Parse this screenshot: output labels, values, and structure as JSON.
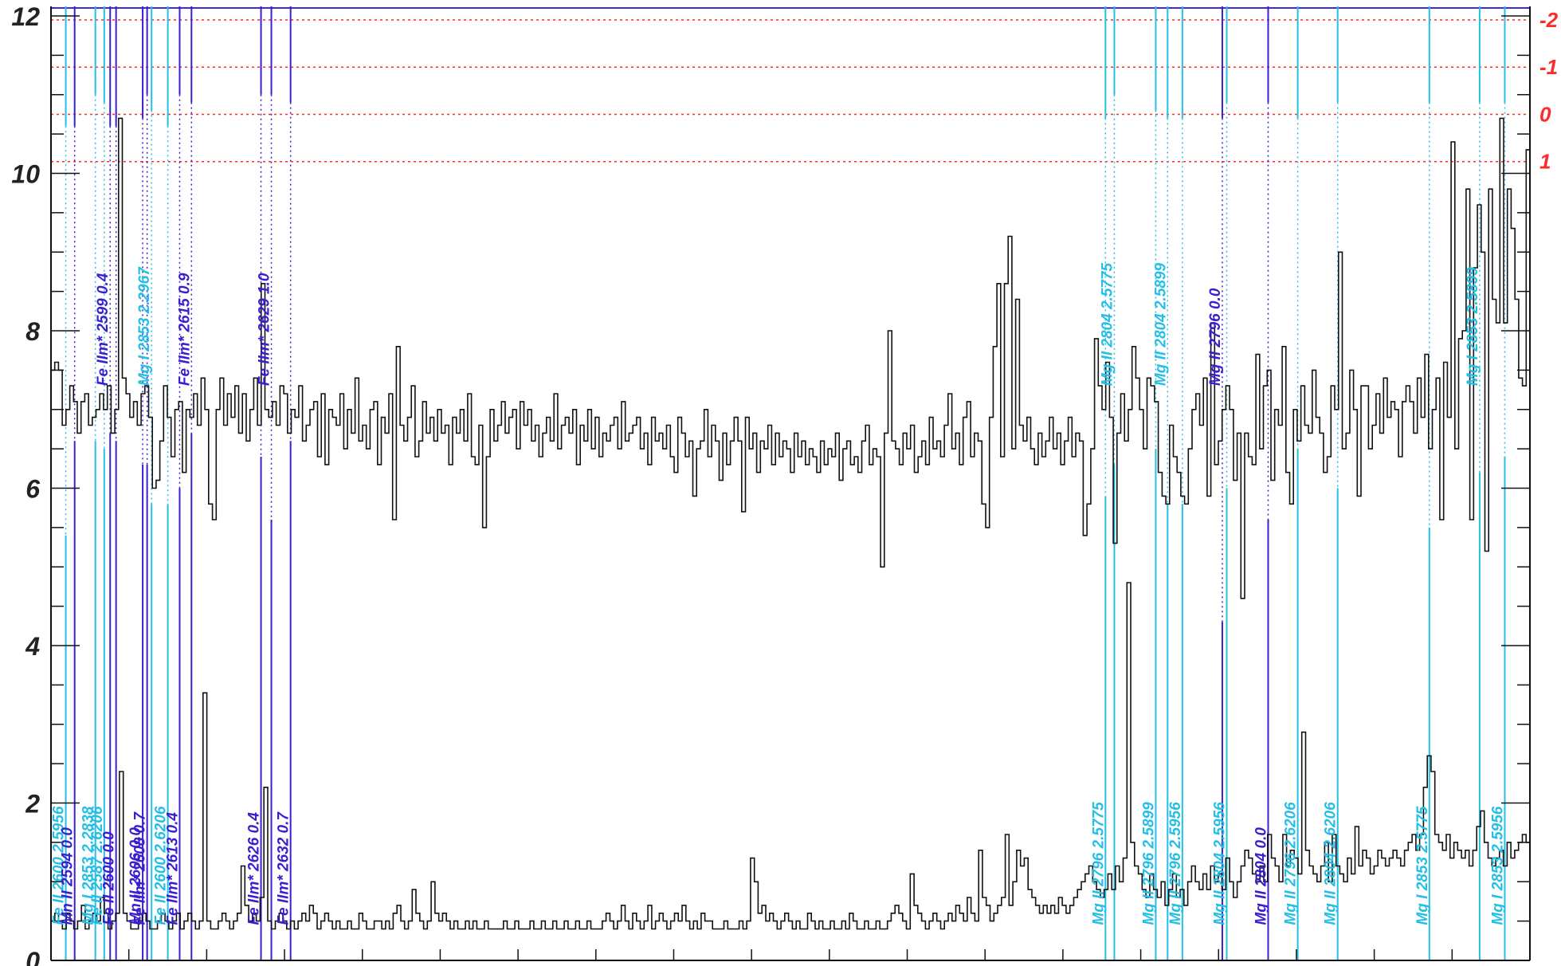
{
  "chart_data": {
    "type": "line",
    "style": "step",
    "ylim": [
      0,
      12
    ],
    "y_ticks": [
      "0",
      "2",
      "4",
      "6",
      "8",
      "10",
      "12"
    ],
    "right_axis": {
      "ticks": [
        "-2",
        "-1",
        "0",
        "1"
      ],
      "tick_values_on_left_scale": [
        11.95,
        11.35,
        10.75,
        10.15
      ],
      "color": "#ff2a2a",
      "gridlines": "dotted"
    },
    "x_tick_count": 19,
    "colors": {
      "flux": "#111111",
      "error": "#111111",
      "light_lines": "#25bfe6",
      "dark_lines": "#3a1fd0",
      "right_axis": "#ff2a2a"
    },
    "series": [
      {
        "role": "flux",
        "values": [
          7.5,
          7.6,
          7.5,
          6.8,
          7.0,
          7.3,
          7.1,
          6.7,
          7.1,
          7.2,
          6.8,
          6.9,
          7.0,
          7.2,
          7.0,
          7.3,
          6.7,
          7.0,
          10.7,
          7.4,
          7.2,
          6.9,
          7.1,
          6.8,
          7.2,
          7.3,
          6.9,
          6.0,
          6.1,
          6.6,
          7.3,
          6.9,
          6.4,
          7.0,
          7.1,
          6.2,
          7.0,
          6.9,
          7.2,
          6.8,
          7.4,
          7.0,
          5.8,
          5.6,
          7.0,
          7.4,
          6.8,
          7.2,
          6.9,
          7.3,
          6.7,
          7.2,
          6.6,
          7.0,
          7.4,
          6.8,
          8.6,
          7.0,
          6.9,
          7.1,
          6.8,
          7.3,
          7.2,
          6.7,
          7.0,
          6.9,
          7.3,
          6.6,
          6.8,
          7.0,
          7.1,
          6.4,
          7.2,
          6.3,
          7.0,
          6.9,
          6.8,
          7.2,
          6.5,
          7.0,
          6.7,
          7.4,
          6.6,
          6.8,
          6.5,
          7.0,
          7.1,
          6.3,
          6.9,
          6.7,
          7.2,
          5.6,
          7.8,
          6.8,
          6.6,
          6.9,
          7.3,
          6.4,
          6.6,
          7.1,
          6.7,
          6.9,
          6.6,
          7.0,
          6.7,
          6.8,
          6.3,
          6.9,
          6.7,
          7.0,
          6.6,
          7.2,
          6.4,
          6.3,
          6.8,
          5.5,
          6.4,
          7.0,
          6.6,
          6.8,
          7.1,
          6.7,
          6.9,
          7.0,
          6.5,
          7.1,
          6.8,
          7.0,
          6.6,
          6.8,
          6.4,
          6.7,
          6.9,
          6.6,
          7.2,
          6.5,
          6.8,
          6.9,
          6.7,
          7.0,
          6.3,
          6.8,
          6.6,
          7.0,
          6.5,
          6.9,
          6.4,
          6.7,
          6.6,
          6.8,
          6.9,
          6.5,
          7.1,
          6.6,
          6.7,
          6.8,
          6.9,
          6.5,
          6.7,
          6.3,
          6.9,
          6.6,
          6.7,
          6.5,
          6.8,
          6.4,
          6.2,
          6.9,
          6.7,
          6.4,
          6.6,
          5.9,
          6.5,
          6.6,
          7.0,
          6.4,
          6.8,
          6.6,
          6.1,
          6.7,
          6.3,
          6.6,
          6.9,
          6.6,
          5.7,
          6.9,
          6.5,
          6.7,
          6.2,
          6.6,
          6.5,
          6.8,
          6.3,
          6.7,
          6.4,
          6.6,
          6.5,
          6.2,
          6.7,
          6.4,
          6.6,
          6.3,
          6.5,
          6.4,
          6.2,
          6.6,
          6.3,
          6.5,
          6.4,
          6.7,
          6.1,
          6.5,
          6.6,
          6.3,
          6.4,
          6.2,
          6.6,
          6.8,
          6.3,
          6.5,
          6.4,
          5.0,
          6.7,
          8.0,
          6.6,
          6.5,
          6.3,
          6.7,
          6.5,
          6.8,
          6.2,
          6.4,
          6.6,
          6.3,
          6.9,
          6.5,
          6.6,
          6.4,
          6.8,
          7.2,
          6.5,
          6.7,
          6.3,
          6.9,
          7.1,
          6.4,
          6.7,
          6.6,
          5.8,
          5.5,
          6.9,
          7.8,
          8.6,
          6.4,
          8.6,
          9.2,
          6.5,
          8.4,
          6.8,
          6.6,
          6.9,
          6.5,
          6.3,
          6.7,
          6.4,
          6.6,
          6.9,
          6.5,
          6.7,
          6.3,
          6.6,
          6.9,
          6.4,
          6.7,
          6.6,
          5.4,
          5.8,
          6.5,
          7.9,
          7.3,
          7.0,
          7.6,
          6.9,
          5.3,
          6.7,
          7.2,
          6.6,
          7.0,
          7.8,
          7.4,
          7.0,
          6.5,
          7.4,
          7.3,
          7.1,
          6.2,
          5.9,
          5.8,
          6.8,
          6.4,
          6.2,
          5.9,
          5.8,
          6.5,
          7.0,
          7.2,
          6.8,
          7.4,
          5.9,
          8.1,
          6.3,
          6.6,
          7.0,
          7.3,
          7.0,
          6.1,
          6.7,
          4.6,
          6.7,
          6.4,
          6.3,
          7.7,
          6.5,
          7.3,
          7.5,
          6.1,
          7.0,
          6.8,
          7.8,
          6.2,
          5.8,
          7.0,
          6.6,
          7.3,
          6.8,
          6.7,
          7.5,
          6.9,
          6.7,
          6.2,
          6.4,
          7.3,
          7.0,
          9.0,
          6.5,
          6.7,
          7.5,
          7.0,
          5.9,
          7.3,
          7.3,
          6.5,
          6.8,
          7.2,
          6.7,
          7.4,
          6.9,
          7.1,
          7.0,
          6.4,
          7.1,
          7.3,
          7.1,
          6.7,
          7.4,
          6.9,
          7.7,
          6.5,
          7.0,
          7.4,
          5.6,
          7.6,
          6.9,
          10.4,
          6.5,
          7.9,
          8.0,
          9.8,
          5.6,
          8.8,
          9.6,
          9.0,
          5.2,
          9.8,
          8.4,
          8.1,
          10.7,
          8.1,
          9.8,
          9.3,
          8.4,
          7.4,
          7.3,
          10.3
        ]
      },
      {
        "role": "error",
        "values": [
          0.5,
          0.6,
          0.5,
          0.4,
          0.6,
          0.5,
          0.4,
          0.5,
          0.7,
          0.4,
          0.5,
          0.6,
          0.5,
          0.8,
          0.6,
          0.4,
          0.5,
          0.6,
          2.4,
          0.6,
          0.5,
          0.4,
          0.4,
          0.5,
          0.6,
          0.5,
          0.4,
          0.4,
          0.5,
          0.6,
          0.5,
          0.4,
          0.5,
          0.6,
          0.4,
          0.5,
          0.6,
          0.5,
          0.4,
          0.5,
          3.4,
          0.5,
          0.4,
          0.4,
          0.5,
          0.6,
          0.5,
          0.4,
          0.5,
          0.6,
          1.2,
          0.7,
          0.5,
          0.6,
          0.5,
          0.8,
          2.2,
          0.5,
          0.4,
          0.5,
          0.6,
          0.5,
          0.4,
          0.5,
          0.4,
          0.5,
          0.6,
          0.5,
          0.7,
          0.6,
          0.4,
          0.5,
          0.6,
          0.5,
          0.4,
          0.5,
          0.4,
          0.4,
          0.5,
          0.4,
          0.4,
          0.6,
          0.5,
          0.4,
          0.4,
          0.5,
          0.5,
          0.4,
          0.5,
          0.4,
          0.6,
          0.7,
          0.5,
          0.4,
          0.5,
          0.9,
          0.6,
          0.5,
          0.4,
          0.5,
          1.0,
          0.6,
          0.5,
          0.6,
          0.5,
          0.4,
          0.5,
          0.4,
          0.4,
          0.5,
          0.4,
          0.5,
          0.4,
          0.4,
          0.5,
          0.4,
          0.4,
          0.4,
          0.4,
          0.5,
          0.4,
          0.4,
          0.5,
          0.4,
          0.4,
          0.4,
          0.5,
          0.4,
          0.4,
          0.5,
          0.4,
          0.4,
          0.5,
          0.4,
          0.4,
          0.5,
          0.4,
          0.4,
          0.5,
          0.4,
          0.4,
          0.5,
          0.4,
          0.4,
          0.4,
          0.5,
          0.6,
          0.5,
          0.4,
          0.5,
          0.7,
          0.5,
          0.4,
          0.6,
          0.5,
          0.4,
          0.5,
          0.7,
          0.4,
          0.5,
          0.6,
          0.5,
          0.4,
          0.5,
          0.6,
          0.5,
          0.7,
          0.5,
          0.4,
          0.5,
          0.4,
          0.6,
          0.5,
          0.5,
          0.4,
          0.4,
          0.4,
          0.5,
          0.4,
          0.4,
          0.4,
          0.5,
          0.4,
          0.5,
          1.3,
          1.0,
          0.6,
          0.7,
          0.5,
          0.6,
          0.5,
          0.4,
          0.5,
          0.6,
          0.5,
          0.4,
          0.5,
          0.4,
          0.4,
          0.6,
          0.5,
          0.4,
          0.5,
          0.4,
          0.4,
          0.5,
          0.4,
          0.4,
          0.5,
          0.4,
          0.6,
          0.5,
          0.4,
          0.4,
          0.5,
          0.4,
          0.4,
          0.5,
          0.4,
          0.4,
          0.5,
          0.6,
          0.7,
          0.6,
          0.5,
          0.4,
          1.1,
          0.7,
          0.6,
          0.5,
          0.4,
          0.5,
          0.6,
          0.5,
          0.4,
          0.5,
          0.6,
          0.5,
          0.7,
          0.6,
          0.5,
          0.8,
          0.6,
          0.5,
          1.4,
          0.8,
          0.7,
          0.5,
          0.6,
          0.7,
          0.8,
          1.6,
          0.7,
          1.0,
          1.4,
          1.2,
          1.3,
          0.9,
          0.8,
          0.7,
          0.6,
          0.7,
          0.6,
          0.7,
          0.6,
          0.8,
          0.7,
          0.6,
          0.7,
          0.8,
          0.9,
          1.0,
          1.1,
          1.2,
          1.0,
          0.9,
          0.8,
          0.9,
          1.1,
          0.9,
          1.2,
          1.0,
          1.3,
          4.8,
          1.5,
          1.2,
          1.1,
          0.9,
          0.8,
          1.1,
          0.9,
          0.8,
          1.0,
          0.7,
          0.9,
          1.1,
          0.8,
          0.9,
          0.7,
          1.0,
          1.2,
          1.0,
          0.9,
          1.1,
          0.9,
          1.2,
          1.0,
          1.1,
          0.9,
          1.3,
          1.0,
          0.8,
          1.0,
          1.2,
          1.4,
          1.3,
          1.1,
          1.0,
          1.2,
          1.0,
          1.6,
          1.3,
          1.2,
          1.0,
          1.6,
          1.2,
          1.4,
          1.3,
          1.1,
          2.9,
          1.4,
          1.2,
          1.1,
          1.0,
          1.2,
          1.5,
          1.0,
          1.6,
          1.2,
          1.1,
          1.0,
          1.3,
          1.1,
          1.7,
          1.2,
          1.4,
          1.3,
          1.1,
          1.2,
          1.4,
          1.3,
          1.2,
          1.3,
          1.4,
          1.3,
          1.2,
          1.4,
          1.5,
          1.6,
          1.4,
          1.6,
          2.2,
          2.6,
          2.4,
          1.6,
          1.5,
          1.4,
          1.6,
          1.3,
          1.5,
          1.4,
          1.3,
          1.4,
          1.2,
          1.4,
          1.7,
          1.9,
          1.5,
          1.3,
          1.2,
          1.3,
          1.4,
          1.2,
          1.5,
          1.3,
          1.4,
          1.5,
          1.6,
          1.5
        ]
      }
    ],
    "absorption_lines": [
      {
        "label": "Fe II 2600 2.5956",
        "group": "light",
        "pos": 0.01,
        "label_pos": "bottom",
        "top_end": 10.6,
        "bottom_start": 5.4
      },
      {
        "label": "Mn II 2594 0.0",
        "group": "dark",
        "pos": 0.016,
        "label_pos": "bottom",
        "top_end": 10.6,
        "bottom_start": 6.6
      },
      {
        "label": "Mg I 2853 2.2838",
        "group": "light",
        "pos": 0.03,
        "label_pos": "bottom",
        "top_end": 11.0,
        "bottom_start": 6.6
      },
      {
        "label": "Fe II 2587 2.6206",
        "group": "light",
        "pos": 0.036,
        "label_pos": "bottom",
        "top_end": 10.9,
        "bottom_start": 6.5
      },
      {
        "label": "Fe IIm* 2599 0.4",
        "group": "dark",
        "pos": 0.04,
        "label_pos": "top",
        "top_end": 10.6,
        "bottom_start": 6.7
      },
      {
        "label": "Fe II 2600 0.0",
        "group": "dark",
        "pos": 0.044,
        "label_pos": "bottom",
        "top_end": 10.6,
        "bottom_start": 6.6
      },
      {
        "label": "Mn II 2606 0.0",
        "group": "dark",
        "pos": 0.062,
        "label_pos": "bottom",
        "top_end": 10.7,
        "bottom_start": 6.3
      },
      {
        "label": "Mg I 2853 2.2967",
        "group": "light",
        "pos": 0.068,
        "label_pos": "top",
        "top_end": 10.8,
        "bottom_start": 5.8
      },
      {
        "label": "Fe IIm* 2608 0.7",
        "group": "dark",
        "pos": 0.065,
        "label_pos": "bottom",
        "top_end": 11.0,
        "bottom_start": 6.3
      },
      {
        "label": "Fe II 2600 2.6206",
        "group": "light",
        "pos": 0.079,
        "label_pos": "bottom",
        "top_end": 10.6,
        "bottom_start": 5.8
      },
      {
        "label": "Fe IIm* 2613 0.4",
        "group": "dark",
        "pos": 0.087,
        "label_pos": "bottom",
        "top_end": 11.0,
        "bottom_start": 6.0
      },
      {
        "label": "Fe IIm* 2615 0.9",
        "group": "dark",
        "pos": 0.095,
        "label_pos": "top",
        "top_end": 10.9,
        "bottom_start": 6.7
      },
      {
        "label": "Fe IIm* 2626 0.4",
        "group": "dark",
        "pos": 0.142,
        "label_pos": "bottom",
        "top_end": 11.0,
        "bottom_start": 6.4
      },
      {
        "label": "Fe IIm* 2629 1.0",
        "group": "dark",
        "pos": 0.149,
        "label_pos": "top",
        "top_end": 11.0,
        "bottom_start": 5.6
      },
      {
        "label": "Fe IIm* 2632 0.7",
        "group": "dark",
        "pos": 0.162,
        "label_pos": "bottom",
        "top_end": 10.9,
        "bottom_start": 6.6
      },
      {
        "label": "Mg II 2796 2.5775",
        "group": "light",
        "pos": 0.713,
        "label_pos": "bottom",
        "top_end": 10.7,
        "bottom_start": 5.9
      },
      {
        "label": "Mg II 2804 2.5775",
        "group": "light",
        "pos": 0.719,
        "label_pos": "top",
        "top_end": 11.0,
        "bottom_start": 6.3
      },
      {
        "label": "Mg II 2796 2.5899",
        "group": "light",
        "pos": 0.747,
        "label_pos": "bottom",
        "top_end": 10.8,
        "bottom_start": 6.5
      },
      {
        "label": "Mg II 2804 2.5899",
        "group": "light",
        "pos": 0.755,
        "label_pos": "top",
        "top_end": 10.7,
        "bottom_start": 5.8
      },
      {
        "label": "Mg II 2796 2.5956",
        "group": "light",
        "pos": 0.765,
        "label_pos": "bottom",
        "top_end": 10.7,
        "bottom_start": 5.8
      },
      {
        "label": "Mg II 2796 0.0",
        "group": "dark",
        "pos": 0.792,
        "label_pos": "top",
        "top_end": 10.7,
        "bottom_start": 4.3
      },
      {
        "label": "Mg II 2804 2.5956",
        "group": "light",
        "pos": 0.795,
        "label_pos": "bottom",
        "top_end": 10.9,
        "bottom_start": 6.0
      },
      {
        "label": "Mg II 2804 0.0",
        "group": "dark",
        "pos": 0.823,
        "label_pos": "bottom",
        "top_end": 10.9,
        "bottom_start": 5.6
      },
      {
        "label": "Mg II 2796 2.6206",
        "group": "light",
        "pos": 0.843,
        "label_pos": "bottom",
        "top_end": 10.7,
        "bottom_start": 6.5
      },
      {
        "label": "Mg II 2804 2.6206",
        "group": "light",
        "pos": 0.87,
        "label_pos": "bottom",
        "top_end": 10.9,
        "bottom_start": 6.0
      },
      {
        "label": "Mg I 2853 2.5775",
        "group": "light",
        "pos": 0.932,
        "label_pos": "bottom",
        "top_end": 10.9,
        "bottom_start": 5.5
      },
      {
        "label": "Mg I 2853 2.5899",
        "group": "light",
        "pos": 0.966,
        "label_pos": "top",
        "top_end": 10.9,
        "bottom_start": 6.2
      },
      {
        "label": "Mg I 2853 2.5956",
        "group": "light",
        "pos": 0.983,
        "label_pos": "bottom",
        "top_end": 10.9,
        "bottom_start": 6.4
      }
    ]
  }
}
